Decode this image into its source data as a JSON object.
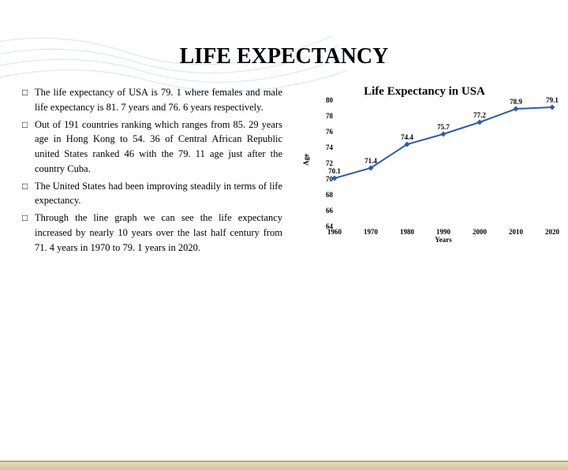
{
  "title": "LIFE EXPECTANCY",
  "bullets": [
    "The life expectancy of USA is 79. 1 where females and male life expectancy is 81. 7 years and 76. 6 years respectively.",
    "Out of 191 countries ranking which ranges from 85. 29 years age in Hong Kong to 54. 36 of Central African Republic  united States ranked 46 with the 79. 11 age just after the country Cuba.",
    "The United States had been improving steadily in terms  of life expectancy.",
    "Through the line graph we can see the life expectancy increased by nearly 10 years over the last half century from 71. 4 years in 1970 to 79. 1 years in 2020."
  ],
  "chart": {
    "title": "Life Expectancy in USA",
    "type": "line",
    "x_label": "Years",
    "y_label": "Age",
    "x_values": [
      1960,
      1970,
      1980,
      1990,
      2000,
      2010,
      2020
    ],
    "y_values": [
      70.1,
      71.4,
      74.4,
      75.7,
      77.2,
      78.9,
      79.1
    ],
    "point_labels": [
      "70.1",
      "71.4",
      "74.4",
      "75.7",
      "77.2",
      "78.9",
      "79.1"
    ],
    "x_ticks": [
      1960,
      1970,
      1980,
      1990,
      2000,
      2010,
      2020
    ],
    "y_ticks": [
      64,
      66,
      68,
      70,
      72,
      74,
      76,
      78,
      80
    ],
    "ylim": [
      64,
      80
    ],
    "xlim": [
      1960,
      2020
    ],
    "line_color": "#2a5caa",
    "marker_color": "#2a5caa",
    "line_width": 2,
    "background_color": "#ffffff"
  },
  "swirl_color": "#7aa8d8"
}
